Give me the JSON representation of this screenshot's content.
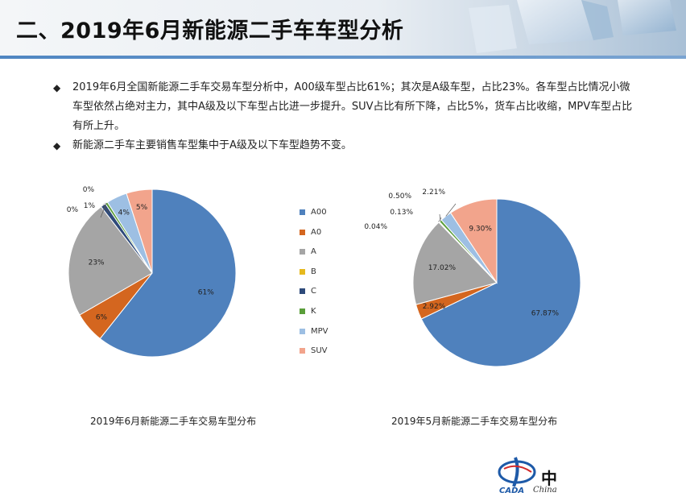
{
  "header": {
    "title": "二、2019年6月新能源二手车车型分析"
  },
  "bullets": [
    "2019年6月全国新能源二手车交易车型分析中，A00级车型占比61%；其次是A级车型，占比23%。各车型占比情况小微车型依然占绝对主力，其中A级及以下车型占比进一步提升。SUV占比有所下降，占比5%，货车占比收缩，MPV车型占比有所上升。",
    "新能源二手车主要销售车型集中于A级及以下车型趋势不变。"
  ],
  "legend": [
    {
      "label": "A00",
      "color": "#4f81bd"
    },
    {
      "label": "A0",
      "color": "#d4661f"
    },
    {
      "label": "A",
      "color": "#a5a5a5"
    },
    {
      "label": "B",
      "color": "#e6b91e"
    },
    {
      "label": "C",
      "color": "#2e4a7a"
    },
    {
      "label": "K",
      "color": "#5a9e3a"
    },
    {
      "label": "MPV",
      "color": "#9dbfe3"
    },
    {
      "label": "SUV",
      "color": "#f2a48c"
    }
  ],
  "chart_data": [
    {
      "type": "pie",
      "title": "2019年6月新能源二手车交易车型分布",
      "categories": [
        "A00",
        "A0",
        "A",
        "B",
        "C",
        "K",
        "MPV",
        "SUV"
      ],
      "values": [
        61,
        6,
        23,
        0,
        1,
        0.5,
        4,
        5
      ],
      "labels": [
        "61%",
        "6%",
        "23%",
        "0%",
        "1%",
        "0%",
        "4%",
        "5%"
      ]
    },
    {
      "type": "pie",
      "title": "2019年5月新能源二手车交易车型分布",
      "categories": [
        "A00",
        "A0",
        "A",
        "B",
        "C",
        "K",
        "MPV",
        "SUV"
      ],
      "values": [
        67.87,
        2.92,
        17.02,
        0.04,
        0.13,
        0.5,
        2.21,
        9.3
      ],
      "labels": [
        "67.87%",
        "2.92%",
        "17.02%",
        "0.04%",
        "0.13%",
        "0.50%",
        "2.21%",
        "9.30%"
      ]
    }
  ],
  "logo": {
    "text": "中",
    "sub": "China",
    "badge": "CADA"
  }
}
